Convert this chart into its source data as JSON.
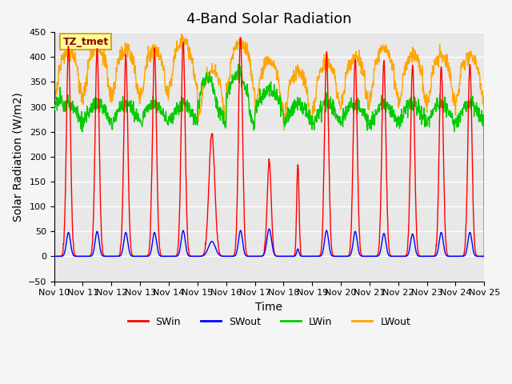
{
  "title": "4-Band Solar Radiation",
  "xlabel": "Time",
  "ylabel": "Solar Radiation (W/m2)",
  "ylim": [
    -50,
    450
  ],
  "xlim": [
    0,
    15
  ],
  "xtick_labels": [
    "Nov 10",
    "Nov 11",
    "Nov 12",
    "Nov 13",
    "Nov 14",
    "Nov 15",
    "Nov 16",
    "Nov 17",
    "Nov 18",
    "Nov 19",
    "Nov 20",
    "Nov 21",
    "Nov 22",
    "Nov 23",
    "Nov 24",
    "Nov 25"
  ],
  "annotation_text": "TZ_tmet",
  "annotation_color": "#8B0000",
  "annotation_bg": "#FFFF99",
  "annotation_border": "#DAA520",
  "colors": {
    "SWin": "#FF0000",
    "SWout": "#0000FF",
    "LWin": "#00CC00",
    "LWout": "#FFA500"
  },
  "background_color": "#E8E8E8",
  "grid_color": "#FFFFFF",
  "title_fontsize": 13,
  "label_fontsize": 10
}
